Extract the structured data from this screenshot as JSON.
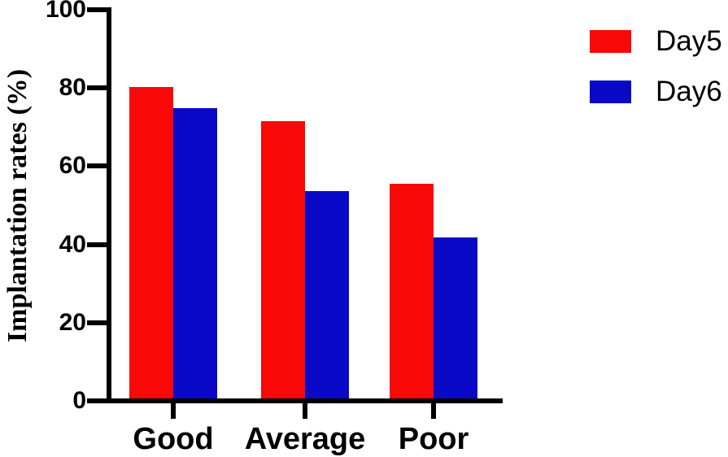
{
  "chart_data": {
    "type": "bar",
    "title": "",
    "xlabel": "",
    "ylabel": "Implantation rates (%)",
    "categories": [
      "Good",
      "Average",
      "Poor"
    ],
    "series": [
      {
        "name": "Day5",
        "color": "#f90808",
        "values": [
          80.3,
          71.5,
          55.6
        ]
      },
      {
        "name": "Day6",
        "color": "#0909c7",
        "values": [
          74.8,
          53.7,
          41.8
        ]
      }
    ],
    "ylim": [
      0,
      100
    ],
    "yticks": [
      0,
      20,
      40,
      60,
      80,
      100
    ],
    "grid": false,
    "legend_position": "top-right",
    "axis_color": "#000000",
    "background_color": "#ffffff"
  }
}
